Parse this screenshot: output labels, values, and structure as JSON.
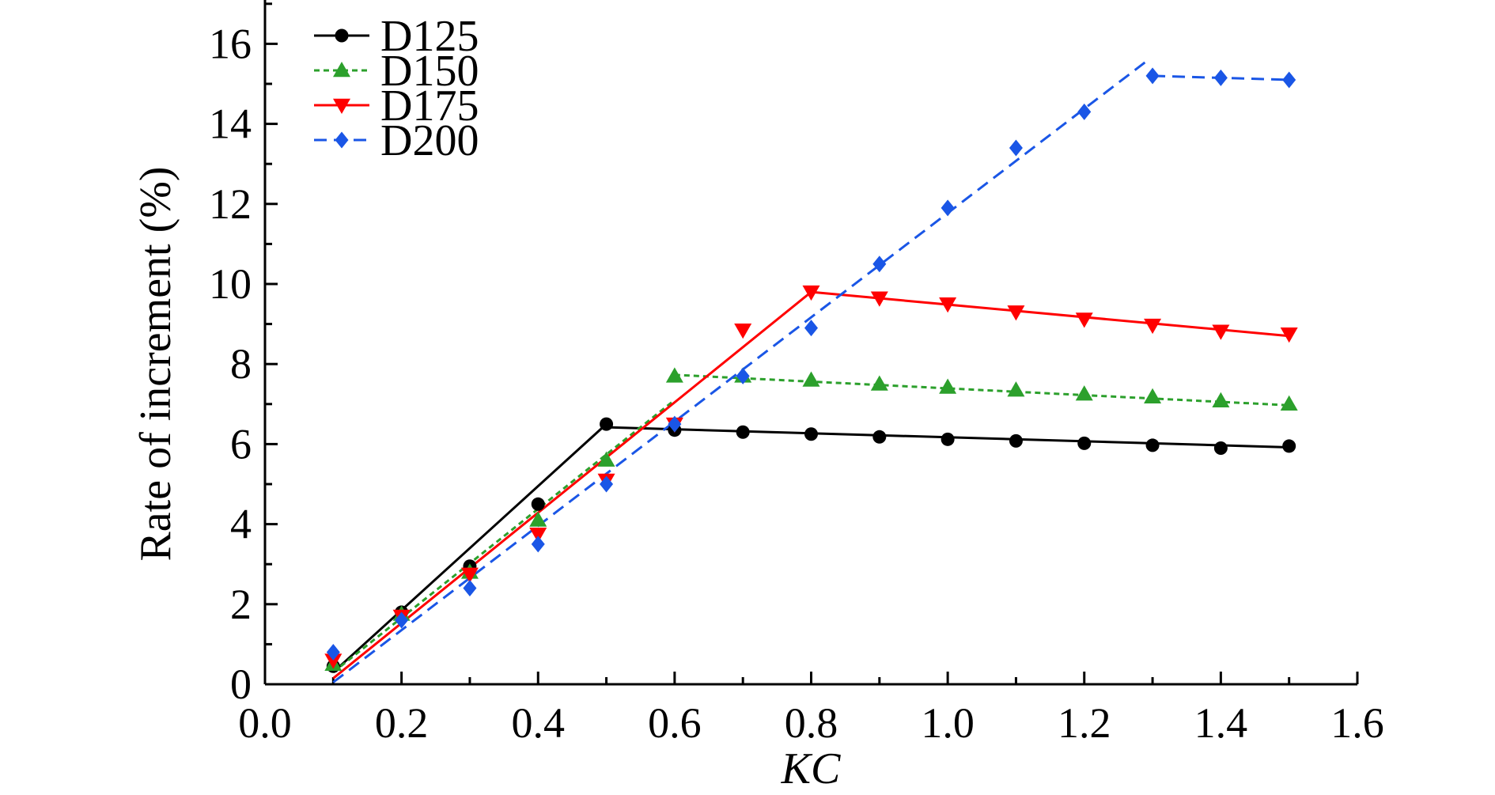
{
  "chart_data": {
    "type": "scatter",
    "xlabel": "KC",
    "ylabel": "Rate of increment (%)",
    "xlim": [
      0.0,
      1.6
    ],
    "ylim": [
      0,
      17
    ],
    "x_ticks": [
      "0.0",
      "0.2",
      "0.4",
      "0.6",
      "0.8",
      "1.0",
      "1.2",
      "1.4",
      "1.6"
    ],
    "y_ticks": [
      "0",
      "2",
      "4",
      "6",
      "8",
      "10",
      "12",
      "14",
      "16"
    ],
    "legend_position": "top-left",
    "grid": false,
    "series": [
      {
        "name": "D125",
        "color": "#000000",
        "marker": "circle",
        "dash": "solid",
        "points": [
          [
            0.1,
            0.45
          ],
          [
            0.2,
            1.8
          ],
          [
            0.3,
            2.95
          ],
          [
            0.4,
            4.5
          ],
          [
            0.5,
            6.5
          ],
          [
            0.6,
            6.35
          ],
          [
            0.7,
            6.3
          ],
          [
            0.8,
            6.25
          ],
          [
            0.9,
            6.18
          ],
          [
            1.0,
            6.12
          ],
          [
            1.1,
            6.08
          ],
          [
            1.2,
            6.02
          ],
          [
            1.3,
            5.97
          ],
          [
            1.4,
            5.9
          ],
          [
            1.5,
            5.95
          ]
        ],
        "fit_lines": [
          [
            [
              0.1,
              0.3
            ],
            [
              0.5,
              6.5
            ]
          ],
          [
            [
              0.5,
              6.42
            ],
            [
              1.5,
              5.92
            ]
          ]
        ]
      },
      {
        "name": "D150",
        "color": "#2ca02c",
        "marker": "triangle-up",
        "dash": "short",
        "points": [
          [
            0.1,
            0.5
          ],
          [
            0.2,
            1.75
          ],
          [
            0.3,
            2.8
          ],
          [
            0.4,
            4.1
          ],
          [
            0.5,
            5.6
          ],
          [
            0.6,
            7.7
          ],
          [
            0.7,
            7.7
          ],
          [
            0.8,
            7.6
          ],
          [
            0.9,
            7.5
          ],
          [
            1.0,
            7.42
          ],
          [
            1.1,
            7.35
          ],
          [
            1.2,
            7.25
          ],
          [
            1.3,
            7.18
          ],
          [
            1.4,
            7.08
          ],
          [
            1.5,
            7.0
          ]
        ],
        "fit_lines": [
          [
            [
              0.1,
              0.3
            ],
            [
              0.6,
              7.1
            ]
          ],
          [
            [
              0.6,
              7.73
            ],
            [
              1.5,
              6.97
            ]
          ]
        ]
      },
      {
        "name": "D175",
        "color": "#ff0000",
        "marker": "triangle-down",
        "dash": "solid",
        "points": [
          [
            0.1,
            0.6
          ],
          [
            0.2,
            1.7
          ],
          [
            0.3,
            2.75
          ],
          [
            0.4,
            3.75
          ],
          [
            0.5,
            5.1
          ],
          [
            0.6,
            6.5
          ],
          [
            0.7,
            8.85
          ],
          [
            0.8,
            9.8
          ],
          [
            0.9,
            9.65
          ],
          [
            1.0,
            9.5
          ],
          [
            1.1,
            9.3
          ],
          [
            1.2,
            9.12
          ],
          [
            1.3,
            8.97
          ],
          [
            1.4,
            8.82
          ],
          [
            1.5,
            8.75
          ]
        ],
        "fit_lines": [
          [
            [
              0.1,
              0.15
            ],
            [
              0.8,
              9.8
            ]
          ],
          [
            [
              0.8,
              9.8
            ],
            [
              1.5,
              8.7
            ]
          ]
        ]
      },
      {
        "name": "D200",
        "color": "#1a56e6",
        "marker": "diamond",
        "dash": "dashed",
        "points": [
          [
            0.1,
            0.8
          ],
          [
            0.2,
            1.6
          ],
          [
            0.3,
            2.4
          ],
          [
            0.4,
            3.5
          ],
          [
            0.5,
            5.0
          ],
          [
            0.6,
            6.5
          ],
          [
            0.7,
            7.7
          ],
          [
            0.8,
            8.9
          ],
          [
            0.9,
            10.5
          ],
          [
            1.0,
            11.9
          ],
          [
            1.1,
            13.4
          ],
          [
            1.2,
            14.3
          ],
          [
            1.3,
            15.2
          ],
          [
            1.4,
            15.15
          ],
          [
            1.5,
            15.1
          ]
        ],
        "fit_lines": [
          [
            [
              0.1,
              0.05
            ],
            [
              1.29,
              15.55
            ]
          ],
          [
            [
              1.3,
              15.2
            ],
            [
              1.5,
              15.1
            ]
          ]
        ]
      }
    ]
  }
}
